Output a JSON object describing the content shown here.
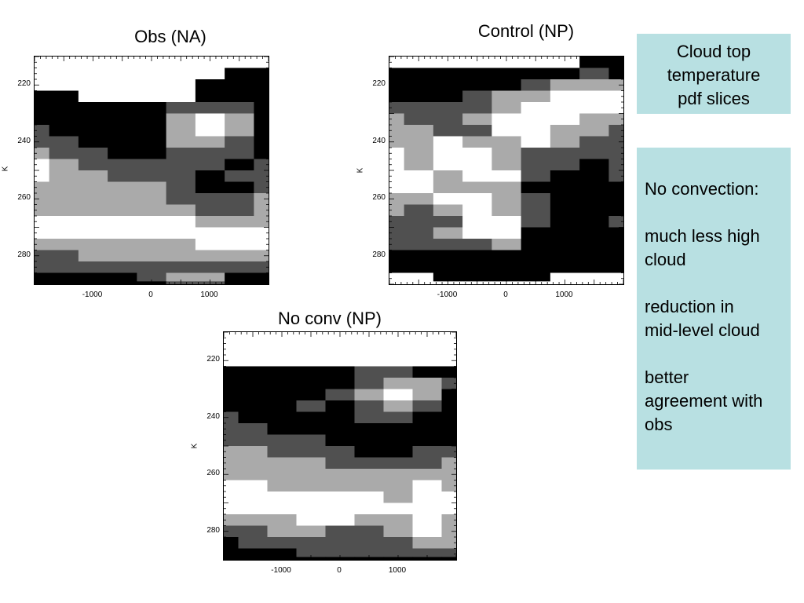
{
  "title_box": {
    "lines": [
      "Cloud top",
      "temperature",
      "pdf slices"
    ]
  },
  "notes_box": {
    "heading": "No convection:",
    "items": [
      [
        "much less high",
        "cloud"
      ],
      [
        "reduction in",
        "mid-level cloud"
      ],
      [
        "better",
        "agreement with",
        "obs"
      ]
    ]
  },
  "colors": {
    "levels": [
      "#ffffff",
      "#aaaaaa",
      "#505050",
      "#000000"
    ],
    "accent_box": "#b8e0e2"
  },
  "chart_data": [
    {
      "type": "heatmap",
      "title": "Obs (NA)",
      "xlabel": "",
      "ylabel": "K",
      "xlim": [
        -2000,
        2000
      ],
      "ylim": [
        290,
        210
      ],
      "x_ticks": [
        -1000,
        0,
        1000
      ],
      "y_ticks": [
        220,
        240,
        260,
        280
      ],
      "x": [
        -2000,
        -1500,
        -1000,
        -500,
        0,
        500,
        1000,
        1500,
        2000
      ],
      "y": [
        212,
        216,
        220,
        224,
        228,
        232,
        236,
        240,
        244,
        248,
        252,
        256,
        260,
        264,
        268,
        272,
        276,
        280,
        284,
        288,
        290
      ],
      "values": [
        [
          0,
          0,
          0,
          0,
          0,
          0,
          0,
          0,
          0
        ],
        [
          0,
          0,
          0,
          0,
          0,
          0,
          0,
          3,
          3
        ],
        [
          0,
          0,
          0,
          0,
          0,
          0,
          3,
          3,
          3
        ],
        [
          3,
          3,
          0,
          0,
          0,
          0,
          3,
          3,
          3
        ],
        [
          3,
          3,
          3,
          3,
          3,
          2,
          2,
          2,
          3
        ],
        [
          3,
          3,
          3,
          3,
          3,
          1,
          0,
          1,
          3
        ],
        [
          2,
          3,
          3,
          3,
          3,
          1,
          0,
          1,
          3
        ],
        [
          2,
          2,
          3,
          3,
          3,
          1,
          1,
          2,
          3
        ],
        [
          1,
          2,
          2,
          3,
          3,
          2,
          2,
          2,
          3
        ],
        [
          0,
          1,
          2,
          2,
          2,
          2,
          2,
          3,
          2
        ],
        [
          0,
          1,
          1,
          2,
          2,
          2,
          3,
          2,
          2
        ],
        [
          1,
          1,
          1,
          1,
          1,
          2,
          3,
          3,
          2
        ],
        [
          1,
          1,
          1,
          1,
          1,
          2,
          2,
          2,
          1
        ],
        [
          1,
          1,
          1,
          1,
          1,
          1,
          2,
          2,
          1
        ],
        [
          0,
          0,
          0,
          0,
          0,
          0,
          1,
          1,
          1
        ],
        [
          0,
          0,
          0,
          0,
          0,
          0,
          0,
          0,
          0
        ],
        [
          1,
          1,
          1,
          1,
          1,
          1,
          0,
          0,
          0
        ],
        [
          2,
          2,
          1,
          1,
          1,
          1,
          1,
          1,
          1
        ],
        [
          2,
          2,
          2,
          2,
          2,
          2,
          2,
          2,
          2
        ],
        [
          3,
          3,
          3,
          3,
          2,
          1,
          1,
          3,
          3
        ],
        [
          3,
          3,
          3,
          3,
          3,
          2,
          2,
          3,
          3
        ]
      ]
    },
    {
      "type": "heatmap",
      "title": "Control (NP)",
      "xlabel": "",
      "ylabel": "K",
      "xlim": [
        -2000,
        2000
      ],
      "ylim": [
        290,
        210
      ],
      "x_ticks": [
        -1000,
        0,
        1000
      ],
      "y_ticks": [
        220,
        240,
        260,
        280
      ],
      "x": [
        -2000,
        -1500,
        -1000,
        -500,
        0,
        500,
        1000,
        1500,
        2000
      ],
      "y": [
        212,
        216,
        220,
        224,
        228,
        232,
        236,
        240,
        244,
        248,
        252,
        256,
        260,
        264,
        268,
        272,
        276,
        280,
        284,
        288,
        290
      ],
      "values": [
        [
          0,
          0,
          0,
          0,
          0,
          0,
          0,
          3,
          3
        ],
        [
          3,
          3,
          3,
          3,
          3,
          3,
          3,
          2,
          3
        ],
        [
          3,
          3,
          3,
          3,
          3,
          2,
          1,
          1,
          1
        ],
        [
          3,
          3,
          3,
          2,
          1,
          1,
          0,
          0,
          0
        ],
        [
          2,
          2,
          2,
          2,
          1,
          0,
          0,
          0,
          0
        ],
        [
          1,
          2,
          2,
          1,
          0,
          0,
          0,
          1,
          1
        ],
        [
          1,
          1,
          2,
          2,
          0,
          0,
          1,
          1,
          2
        ],
        [
          1,
          1,
          0,
          1,
          1,
          0,
          1,
          2,
          2
        ],
        [
          0,
          1,
          0,
          0,
          1,
          2,
          2,
          2,
          2
        ],
        [
          0,
          1,
          0,
          0,
          1,
          2,
          2,
          3,
          2
        ],
        [
          0,
          0,
          1,
          0,
          0,
          2,
          3,
          3,
          2
        ],
        [
          0,
          0,
          1,
          1,
          1,
          3,
          3,
          3,
          3
        ],
        [
          1,
          1,
          0,
          0,
          1,
          2,
          3,
          3,
          3
        ],
        [
          1,
          2,
          1,
          0,
          1,
          2,
          3,
          3,
          3
        ],
        [
          2,
          2,
          2,
          0,
          0,
          2,
          3,
          3,
          2
        ],
        [
          2,
          2,
          1,
          0,
          0,
          3,
          3,
          3,
          3
        ],
        [
          2,
          2,
          2,
          2,
          1,
          3,
          3,
          3,
          3
        ],
        [
          3,
          3,
          3,
          3,
          3,
          3,
          3,
          3,
          3
        ],
        [
          3,
          3,
          3,
          3,
          3,
          3,
          3,
          3,
          3
        ],
        [
          0,
          0,
          3,
          3,
          3,
          3,
          0,
          0,
          0
        ],
        [
          0,
          0,
          0,
          0,
          0,
          0,
          0,
          0,
          0
        ]
      ]
    },
    {
      "type": "heatmap",
      "title": "No conv (NP)",
      "xlabel": "",
      "ylabel": "K",
      "xlim": [
        -2000,
        2000
      ],
      "ylim": [
        290,
        210
      ],
      "x_ticks": [
        -1000,
        0,
        1000
      ],
      "y_ticks": [
        220,
        240,
        260,
        280
      ],
      "x": [
        -2000,
        -1500,
        -1000,
        -500,
        0,
        500,
        1000,
        1500,
        2000
      ],
      "y": [
        212,
        216,
        220,
        224,
        228,
        232,
        236,
        240,
        244,
        248,
        252,
        256,
        260,
        264,
        268,
        272,
        276,
        280,
        284,
        288,
        290
      ],
      "values": [
        [
          0,
          0,
          0,
          0,
          0,
          0,
          0,
          0,
          0
        ],
        [
          0,
          0,
          0,
          0,
          0,
          0,
          0,
          0,
          0
        ],
        [
          0,
          0,
          0,
          0,
          0,
          0,
          0,
          0,
          0
        ],
        [
          3,
          3,
          3,
          3,
          3,
          2,
          2,
          3,
          3
        ],
        [
          3,
          3,
          3,
          3,
          3,
          2,
          1,
          1,
          2
        ],
        [
          3,
          3,
          3,
          3,
          2,
          1,
          0,
          1,
          3
        ],
        [
          3,
          3,
          3,
          2,
          3,
          2,
          1,
          2,
          3
        ],
        [
          2,
          3,
          3,
          3,
          3,
          2,
          2,
          3,
          3
        ],
        [
          2,
          2,
          3,
          3,
          3,
          3,
          3,
          3,
          3
        ],
        [
          2,
          2,
          2,
          2,
          3,
          3,
          3,
          3,
          3
        ],
        [
          1,
          1,
          2,
          2,
          2,
          3,
          3,
          2,
          2
        ],
        [
          1,
          1,
          1,
          1,
          2,
          2,
          2,
          2,
          1
        ],
        [
          1,
          1,
          1,
          1,
          1,
          1,
          1,
          1,
          1
        ],
        [
          0,
          0,
          1,
          1,
          1,
          1,
          1,
          0,
          1
        ],
        [
          0,
          0,
          0,
          0,
          0,
          0,
          1,
          0,
          0
        ],
        [
          0,
          0,
          0,
          0,
          0,
          0,
          0,
          0,
          0
        ],
        [
          1,
          1,
          1,
          0,
          0,
          1,
          1,
          0,
          1
        ],
        [
          2,
          2,
          1,
          1,
          2,
          2,
          1,
          0,
          1
        ],
        [
          3,
          2,
          2,
          2,
          2,
          2,
          2,
          1,
          1
        ],
        [
          3,
          3,
          3,
          2,
          2,
          2,
          2,
          2,
          2
        ],
        [
          3,
          3,
          3,
          3,
          3,
          3,
          3,
          3,
          3
        ]
      ]
    }
  ]
}
